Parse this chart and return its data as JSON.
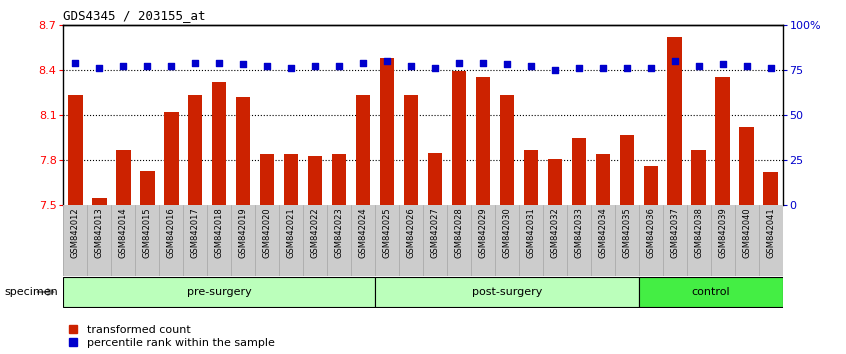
{
  "title": "GDS4345 / 203155_at",
  "samples": [
    "GSM842012",
    "GSM842013",
    "GSM842014",
    "GSM842015",
    "GSM842016",
    "GSM842017",
    "GSM842018",
    "GSM842019",
    "GSM842020",
    "GSM842021",
    "GSM842022",
    "GSM842023",
    "GSM842024",
    "GSM842025",
    "GSM842026",
    "GSM842027",
    "GSM842028",
    "GSM842029",
    "GSM842030",
    "GSM842031",
    "GSM842032",
    "GSM842033",
    "GSM842034",
    "GSM842035",
    "GSM842036",
    "GSM842037",
    "GSM842038",
    "GSM842039",
    "GSM842040",
    "GSM842041"
  ],
  "bar_values": [
    8.23,
    7.55,
    7.87,
    7.73,
    8.12,
    8.23,
    8.32,
    8.22,
    7.84,
    7.84,
    7.83,
    7.84,
    8.23,
    8.48,
    8.23,
    7.85,
    8.39,
    8.35,
    8.23,
    7.87,
    7.81,
    7.95,
    7.84,
    7.97,
    7.76,
    8.62,
    7.87,
    8.35,
    8.02,
    7.72
  ],
  "percentile_values": [
    79,
    76,
    77,
    77,
    77,
    79,
    79,
    78,
    77,
    76,
    77,
    77,
    79,
    80,
    77,
    76,
    79,
    79,
    78,
    77,
    75,
    76,
    76,
    76,
    76,
    80,
    77,
    78,
    77,
    76
  ],
  "bar_color": "#cc2200",
  "percentile_color": "#0000cc",
  "ymin": 7.5,
  "ymax": 8.7,
  "yright_min": 0,
  "yright_max": 100,
  "yticks_left": [
    7.5,
    7.8,
    8.1,
    8.4,
    8.7
  ],
  "yticks_right": [
    0,
    25,
    50,
    75,
    100
  ],
  "hgrid_lines": [
    7.8,
    8.1,
    8.4
  ],
  "groups": [
    {
      "label": "pre-surgery",
      "start": 0,
      "end": 13,
      "color": "#bbffbb"
    },
    {
      "label": "post-surgery",
      "start": 13,
      "end": 24,
      "color": "#bbffbb"
    },
    {
      "label": "control",
      "start": 24,
      "end": 30,
      "color": "#44ee44"
    }
  ],
  "specimen_label": "specimen",
  "legend_bar_label": "transformed count",
  "legend_pct_label": "percentile rank within the sample",
  "background_color": "#ffffff",
  "xtick_bg_color": "#cccccc",
  "xtick_fontsize": 6,
  "bar_width": 0.6
}
